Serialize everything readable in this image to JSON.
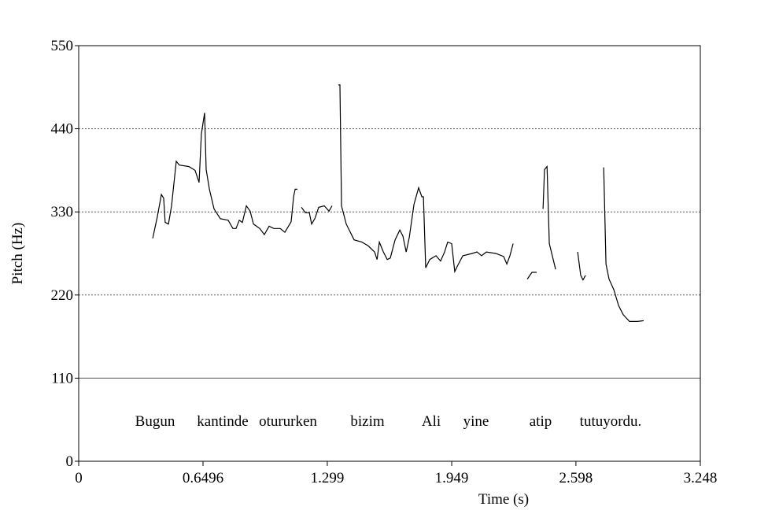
{
  "chart_data": {
    "type": "line",
    "x_label": "Time (s)",
    "y_label": "Pitch (Hz)",
    "xlim": [
      0,
      3.248
    ],
    "xticks": [
      0,
      0.6496,
      1.299,
      1.949,
      2.598,
      3.248
    ],
    "ylim": [
      0,
      550
    ],
    "yticks": [
      0,
      110,
      220,
      330,
      440,
      550
    ],
    "grid": true,
    "grid_style": "dotted",
    "annotations": [
      "Bugun",
      "kantinde",
      "otururken",
      "bizim",
      "Ali",
      "yine",
      "atip",
      "tutuyordu."
    ],
    "series": [
      {
        "color": "#000000",
        "x": [
          0.387,
          0.411,
          0.432,
          0.444,
          0.452,
          0.469,
          0.485,
          0.51,
          0.526,
          0.576,
          0.608,
          0.629,
          0.641,
          0.658,
          0.666,
          0.683,
          0.707,
          0.74,
          0.781,
          0.806,
          0.822,
          0.839,
          0.855,
          0.876,
          0.896,
          0.913,
          0.946,
          0.97,
          0.995,
          1.02,
          1.053,
          1.077,
          1.11,
          1.123,
          1.131,
          1.143,
          1.15,
          1.164,
          1.184,
          1.205,
          1.217,
          1.234,
          1.254,
          1.283,
          1.308,
          1.324,
          1.34,
          1.357,
          1.365,
          1.373,
          1.398,
          1.439,
          1.48,
          1.513,
          1.546,
          1.559,
          1.571,
          1.592,
          1.612,
          1.628,
          1.653,
          1.678,
          1.694,
          1.711,
          1.727,
          1.752,
          1.776,
          1.793,
          1.801,
          1.813,
          1.834,
          1.867,
          1.891,
          1.912,
          1.928,
          1.949,
          1.965,
          1.982,
          2.007,
          2.056,
          2.081,
          2.105,
          2.13,
          2.179,
          2.22,
          2.237,
          2.253,
          2.27,
          2.3,
          2.344,
          2.368,
          2.393,
          2.41,
          2.426,
          2.434,
          2.447,
          2.459,
          2.492,
          2.55,
          2.607,
          2.623,
          2.635,
          2.648,
          2.7,
          2.743,
          2.755,
          2.771,
          2.796,
          2.821,
          2.845,
          2.878,
          2.919,
          2.952
        ],
        "values": [
          295,
          324,
          353,
          348,
          316,
          314,
          338,
          397,
          392,
          390,
          385,
          369,
          433,
          461,
          386,
          360,
          334,
          321,
          319,
          308,
          308,
          319,
          316,
          338,
          331,
          314,
          308,
          300,
          311,
          308,
          308,
          303,
          317,
          350,
          360,
          360,
          null,
          336,
          329,
          329,
          314,
          321,
          336,
          338,
          331,
          338,
          null,
          498,
          498,
          338,
          314,
          293,
          290,
          285,
          277,
          267,
          290,
          277,
          267,
          269,
          293,
          306,
          298,
          277,
          296,
          340,
          362,
          350,
          350,
          256,
          267,
          272,
          265,
          277,
          290,
          288,
          251,
          260,
          272,
          275,
          277,
          272,
          277,
          275,
          271,
          261,
          272,
          288,
          null,
          241,
          250,
          250,
          null,
          334,
          386,
          390,
          288,
          254,
          null,
          277,
          246,
          240,
          246,
          null,
          389,
          261,
          241,
          227,
          206,
          194,
          185,
          185,
          186
        ]
      }
    ]
  }
}
